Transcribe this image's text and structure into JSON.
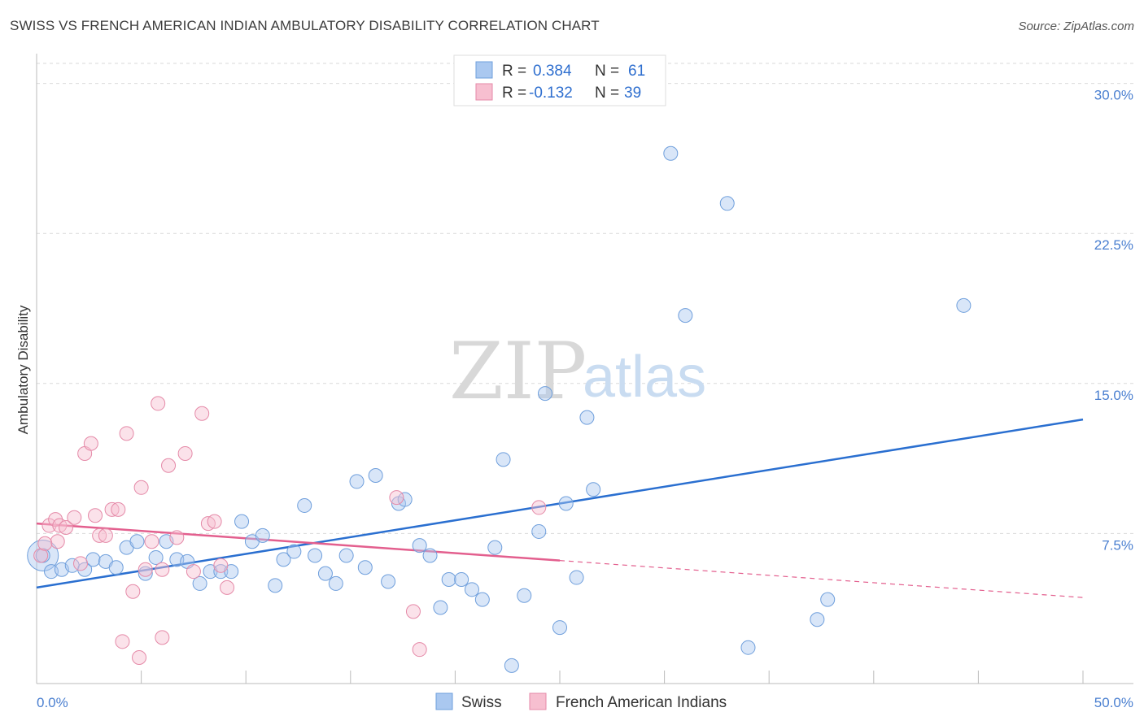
{
  "title": "SWISS VS FRENCH AMERICAN INDIAN AMBULATORY DISABILITY CORRELATION CHART",
  "source": "Source: ZipAtlas.com",
  "watermark": {
    "part1": "ZIP",
    "part2": "atlas"
  },
  "legend": {
    "r_label": "R =",
    "n_label": "N =",
    "rows": [
      {
        "r": "0.384",
        "n": "61",
        "color": "#aac8f0"
      },
      {
        "r": "-0.132",
        "n": "39",
        "color": "#f7bfd0"
      }
    ]
  },
  "bottom_legend": [
    "Swiss",
    "French American Indians"
  ],
  "colors": {
    "swiss_fill": "#aac8f0",
    "swiss_stroke": "#6f9fdc",
    "swiss_line": "#2a6fd0",
    "french_fill": "#f7bfd0",
    "french_stroke": "#e58aa8",
    "french_line": "#e35f8e",
    "grid": "#d9d9d9",
    "tick_text": "#4a7fd0"
  },
  "chart_data": {
    "type": "scatter",
    "title": "SWISS VS FRENCH AMERICAN INDIAN AMBULATORY DISABILITY CORRELATION CHART",
    "xlabel": "",
    "ylabel": "Ambulatory Disability",
    "xlim": [
      0,
      50
    ],
    "ylim": [
      0,
      31
    ],
    "x_tick_labels": [
      "0.0%",
      "50.0%"
    ],
    "y_ticks": [
      7.5,
      15.0,
      22.5,
      30.0
    ],
    "y_tick_labels": [
      "7.5%",
      "15.0%",
      "22.5%",
      "30.0%"
    ],
    "grid": true,
    "series": [
      {
        "name": "Swiss",
        "r": 0.384,
        "n": 61,
        "trend": {
          "x": [
            0,
            50
          ],
          "y": [
            4.8,
            13.2
          ],
          "dashed_from": null
        },
        "points": [
          [
            0.3,
            6.4
          ],
          [
            0.7,
            5.6
          ],
          [
            1.2,
            5.7
          ],
          [
            1.7,
            5.9
          ],
          [
            2.3,
            5.7
          ],
          [
            2.7,
            6.2
          ],
          [
            3.3,
            6.1
          ],
          [
            3.8,
            5.8
          ],
          [
            4.3,
            6.8
          ],
          [
            4.8,
            7.1
          ],
          [
            5.2,
            5.5
          ],
          [
            5.7,
            6.3
          ],
          [
            6.2,
            7.1
          ],
          [
            6.7,
            6.2
          ],
          [
            7.2,
            6.1
          ],
          [
            7.8,
            5.0
          ],
          [
            8.3,
            5.6
          ],
          [
            8.8,
            5.6
          ],
          [
            9.3,
            5.6
          ],
          [
            9.8,
            8.1
          ],
          [
            10.3,
            7.1
          ],
          [
            10.8,
            7.4
          ],
          [
            11.4,
            4.9
          ],
          [
            11.8,
            6.2
          ],
          [
            12.3,
            6.6
          ],
          [
            12.8,
            8.9
          ],
          [
            13.3,
            6.4
          ],
          [
            13.8,
            5.5
          ],
          [
            14.3,
            5.0
          ],
          [
            14.8,
            6.4
          ],
          [
            15.3,
            10.1
          ],
          [
            15.7,
            5.8
          ],
          [
            16.2,
            10.4
          ],
          [
            16.8,
            5.1
          ],
          [
            17.3,
            9.0
          ],
          [
            17.6,
            9.2
          ],
          [
            18.3,
            6.9
          ],
          [
            18.8,
            6.4
          ],
          [
            19.3,
            3.8
          ],
          [
            19.7,
            5.2
          ],
          [
            20.3,
            5.2
          ],
          [
            20.8,
            4.7
          ],
          [
            21.3,
            4.2
          ],
          [
            21.9,
            6.8
          ],
          [
            22.3,
            11.2
          ],
          [
            22.7,
            0.9
          ],
          [
            23.3,
            4.4
          ],
          [
            24.0,
            7.6
          ],
          [
            24.3,
            14.5
          ],
          [
            25.0,
            2.8
          ],
          [
            25.3,
            9.0
          ],
          [
            25.8,
            5.3
          ],
          [
            26.3,
            13.3
          ],
          [
            26.6,
            9.7
          ],
          [
            30.3,
            26.5
          ],
          [
            31.0,
            18.4
          ],
          [
            33.0,
            24.0
          ],
          [
            34.0,
            1.8
          ],
          [
            37.3,
            3.2
          ],
          [
            37.8,
            4.2
          ],
          [
            44.3,
            18.9
          ]
        ]
      },
      {
        "name": "French American Indians",
        "r": -0.132,
        "n": 39,
        "trend": {
          "x": [
            0,
            50
          ],
          "y": [
            8.0,
            4.3
          ],
          "dashed_from": 25
        },
        "points": [
          [
            0.2,
            6.4
          ],
          [
            0.6,
            7.9
          ],
          [
            0.9,
            8.2
          ],
          [
            1.1,
            7.9
          ],
          [
            1.4,
            7.8
          ],
          [
            1.8,
            8.3
          ],
          [
            2.1,
            6.0
          ],
          [
            2.3,
            11.5
          ],
          [
            2.6,
            12.0
          ],
          [
            2.8,
            8.4
          ],
          [
            3.0,
            7.4
          ],
          [
            3.3,
            7.4
          ],
          [
            3.6,
            8.7
          ],
          [
            3.9,
            8.7
          ],
          [
            4.1,
            2.1
          ],
          [
            4.3,
            12.5
          ],
          [
            4.6,
            4.6
          ],
          [
            4.9,
            1.3
          ],
          [
            5.0,
            9.8
          ],
          [
            5.2,
            5.7
          ],
          [
            5.5,
            7.1
          ],
          [
            5.8,
            14.0
          ],
          [
            6.0,
            2.3
          ],
          [
            6.3,
            10.9
          ],
          [
            6.7,
            7.3
          ],
          [
            7.1,
            11.5
          ],
          [
            7.5,
            5.6
          ],
          [
            7.9,
            13.5
          ],
          [
            8.2,
            8.0
          ],
          [
            8.5,
            8.1
          ],
          [
            8.8,
            5.9
          ],
          [
            9.1,
            4.8
          ],
          [
            17.2,
            9.3
          ],
          [
            18.0,
            3.6
          ],
          [
            18.3,
            1.7
          ],
          [
            24.0,
            8.8
          ],
          [
            1.0,
            7.1
          ],
          [
            0.4,
            7.0
          ],
          [
            6.0,
            5.7
          ]
        ]
      }
    ]
  }
}
